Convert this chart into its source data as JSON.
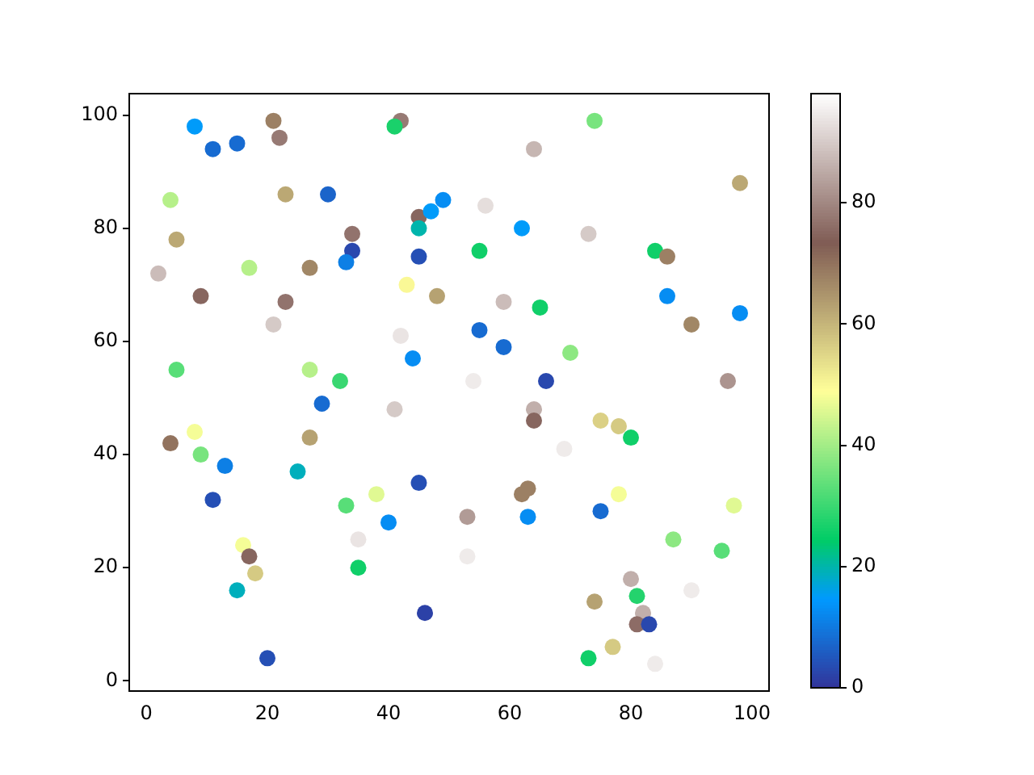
{
  "chart_data": {
    "type": "scatter",
    "x": [
      8,
      11,
      15,
      21,
      22,
      42,
      41,
      74,
      64,
      4,
      23,
      30,
      5,
      17,
      27,
      34,
      34,
      33,
      45,
      45,
      47,
      49,
      45,
      56,
      55,
      62,
      73,
      98,
      84,
      86,
      2,
      9,
      23,
      21,
      43,
      48,
      42,
      5,
      27,
      29,
      32,
      44,
      55,
      59,
      65,
      59,
      66,
      64,
      64,
      70,
      54,
      86,
      90,
      98,
      96,
      4,
      8,
      9,
      13,
      11,
      27,
      25,
      41,
      33,
      38,
      40,
      35,
      45,
      35,
      16,
      17,
      18,
      15,
      20,
      46,
      53,
      53,
      62,
      63,
      63,
      69,
      75,
      78,
      80,
      78,
      75,
      97,
      87,
      95,
      80,
      81,
      82,
      81,
      83,
      74,
      77,
      73,
      84,
      90
    ],
    "values": [
      98,
      94,
      95,
      99,
      96,
      99,
      98,
      99,
      94,
      85,
      86,
      86,
      78,
      73,
      73,
      79,
      76,
      74,
      82,
      80,
      83,
      85,
      75,
      84,
      76,
      80,
      79,
      88,
      76,
      75,
      72,
      68,
      67,
      63,
      70,
      68,
      61,
      55,
      55,
      49,
      53,
      57,
      62,
      59,
      66,
      67,
      53,
      48,
      46,
      58,
      53,
      68,
      63,
      65,
      53,
      42,
      44,
      40,
      38,
      32,
      43,
      37,
      48,
      31,
      33,
      28,
      25,
      35,
      20,
      24,
      22,
      19,
      16,
      4,
      12,
      29,
      22,
      33,
      34,
      29,
      41,
      46,
      45,
      43,
      33,
      30,
      31,
      25,
      23,
      18,
      15,
      12,
      10,
      10,
      14,
      6,
      4,
      3,
      16
    ],
    "cvalues": [
      15,
      8,
      8,
      68,
      78,
      78,
      27,
      36,
      87,
      42,
      62,
      7,
      62,
      42,
      67,
      77,
      3,
      11,
      75,
      20,
      15,
      13,
      4,
      93,
      26,
      15,
      90,
      62,
      26,
      68,
      88,
      75,
      77,
      90,
      50,
      63,
      94,
      33,
      42,
      8,
      30,
      13,
      8,
      8,
      26,
      88,
      3,
      86,
      75,
      38,
      95,
      13,
      67,
      13,
      82,
      70,
      48,
      36,
      11,
      4,
      63,
      19,
      90,
      33,
      46,
      13,
      94,
      4,
      26,
      48,
      75,
      57,
      19,
      4,
      2,
      83,
      95,
      68,
      68,
      13,
      95,
      56,
      57,
      26,
      48,
      8,
      46,
      38,
      33,
      86,
      28,
      86,
      76,
      3,
      63,
      57,
      26,
      95,
      95
    ],
    "clim": [
      0,
      98
    ],
    "cticks": [
      0,
      20,
      40,
      60,
      80
    ],
    "xlim": [
      -2.8,
      102.8
    ],
    "ylim": [
      -1.8,
      103.8
    ],
    "xticks": [
      0,
      20,
      40,
      60,
      80,
      100
    ],
    "yticks": [
      0,
      20,
      40,
      60,
      80,
      100
    ],
    "marker": "circle"
  }
}
